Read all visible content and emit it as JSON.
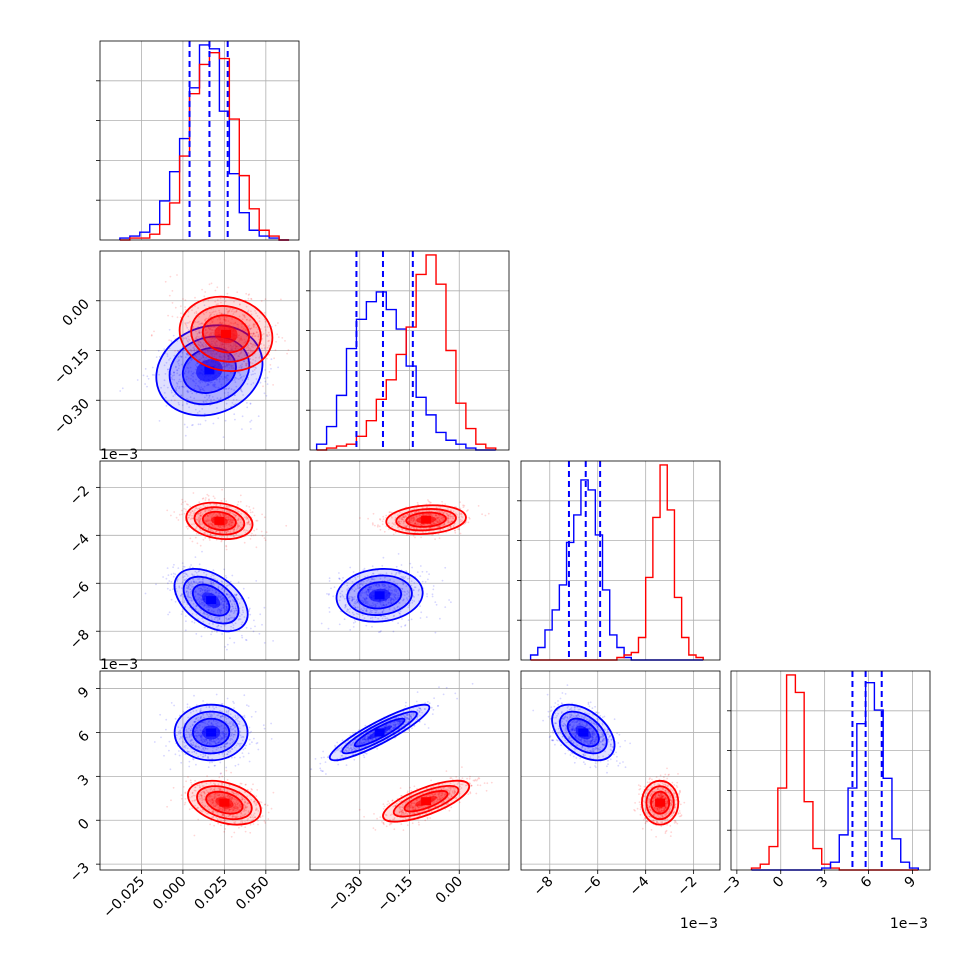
{
  "chart_data": {
    "type": "corner",
    "colors": {
      "primary": "#0000ff",
      "secondary": "#ff0000",
      "grid": "#b0b0b0"
    },
    "grid": true,
    "parameters": [
      {
        "index": 0,
        "range": [
          -0.05,
          0.07
        ],
        "ticks": [
          -0.025,
          0.0,
          0.025,
          0.05
        ],
        "tick_labels": [
          "−0.025",
          "0.000",
          "0.025",
          "0.050"
        ],
        "scale_label": ""
      },
      {
        "index": 1,
        "range": [
          -0.45,
          0.15
        ],
        "ticks": [
          -0.3,
          -0.15,
          0.0
        ],
        "tick_labels": [
          "−0.30",
          "−0.15",
          "0.00"
        ],
        "scale_label": ""
      },
      {
        "index": 2,
        "range": [
          -9.2,
          -0.9
        ],
        "ticks": [
          -8,
          -6,
          -4,
          -2
        ],
        "tick_labels": [
          "−8",
          "−6",
          "−4",
          "−2"
        ],
        "scale_label": "1e−3"
      },
      {
        "index": 3,
        "range": [
          -3.4,
          10.2
        ],
        "ticks": [
          -3,
          0,
          3,
          6,
          9
        ],
        "tick_labels": [
          "−3",
          "0",
          "3",
          "6",
          "9"
        ],
        "scale_label": "1e−3"
      }
    ],
    "diagonal": [
      {
        "param": 0,
        "quantiles": [
          0.004,
          0.016,
          0.027
        ],
        "bin_edges": [
          -0.038,
          -0.032,
          -0.026,
          -0.02,
          -0.014,
          -0.008,
          -0.002,
          0.004,
          0.01,
          0.016,
          0.022,
          0.028,
          0.034,
          0.04,
          0.046,
          0.052,
          0.058,
          0.064
        ],
        "series": [
          {
            "name": "",
            "color": "#0000ff",
            "values": [
              1,
              2,
              4,
              8,
              20,
              35,
              52,
              78,
              100,
              98,
              66,
              34,
              14,
              5,
              2,
              1,
              0
            ]
          },
          {
            "name": "",
            "color": "#ff0000",
            "values": [
              0,
              1,
              1,
              3,
              8,
              19,
              43,
              75,
              90,
              96,
              93,
              62,
              33,
              16,
              5,
              2,
              0
            ]
          }
        ]
      },
      {
        "param": 1,
        "quantiles": [
          -0.31,
          -0.23,
          -0.14
        ],
        "bin_edges": [
          -0.43,
          -0.4,
          -0.37,
          -0.34,
          -0.31,
          -0.28,
          -0.25,
          -0.22,
          -0.19,
          -0.16,
          -0.13,
          -0.1,
          -0.07,
          -0.04,
          -0.01,
          0.02,
          0.05,
          0.08,
          0.11
        ],
        "series": [
          {
            "name": "",
            "color": "#0000ff",
            "values": [
              3,
              12,
              28,
              52,
              67,
              76,
              81,
              72,
              62,
              43,
              27,
              18,
              9,
              5,
              3,
              1,
              0,
              0
            ]
          },
          {
            "name": "",
            "color": "#ff0000",
            "values": [
              0,
              1,
              2,
              3,
              7,
              15,
              26,
              36,
              49,
              63,
              90,
              100,
              85,
              51,
              24,
              11,
              3,
              1
            ]
          }
        ]
      },
      {
        "param": 2,
        "quantiles": [
          -7.2,
          -6.5,
          -5.9
        ],
        "bin_edges": [
          -8.8,
          -8.5,
          -8.2,
          -7.9,
          -7.6,
          -7.3,
          -7.0,
          -6.7,
          -6.4,
          -6.1,
          -5.8,
          -5.5,
          -5.2,
          -4.9,
          -4.6,
          -4.3,
          -4.0,
          -3.7,
          -3.4,
          -3.1,
          -2.8,
          -2.5,
          -2.2,
          -1.9,
          -1.6
        ],
        "series": [
          {
            "name": "",
            "color": "#0000ff",
            "values": [
              2,
              5,
              12,
              20,
              30,
              47,
              58,
              72,
              68,
              50,
              28,
              10,
              5,
              1,
              0,
              0,
              0,
              0,
              0,
              0,
              0,
              0,
              0,
              0
            ]
          },
          {
            "name": "",
            "color": "#ff0000",
            "values": [
              0,
              0,
              0,
              0,
              0,
              0,
              0,
              0,
              0,
              0,
              0,
              0,
              1,
              2,
              3,
              9,
              33,
              57,
              78,
              60,
              25,
              9,
              2,
              1
            ]
          }
        ]
      },
      {
        "param": 3,
        "quantiles": [
          4.9,
          5.8,
          6.9
        ],
        "bin_edges": [
          -2.0,
          -1.4,
          -0.8,
          -0.2,
          0.4,
          1.0,
          1.6,
          2.2,
          2.8,
          3.4,
          4.0,
          4.6,
          5.2,
          5.8,
          6.4,
          7.0,
          7.6,
          8.2,
          8.8,
          9.4
        ],
        "series": [
          {
            "name": "",
            "color": "#ff0000",
            "values": [
              1,
              3,
              12,
              42,
              100,
              91,
              35,
              11,
              3,
              1,
              0,
              0,
              0,
              0,
              0,
              0,
              0,
              0,
              0
            ]
          },
          {
            "name": "",
            "color": "#0000ff",
            "values": [
              0,
              0,
              0,
              0,
              0,
              0,
              0,
              0,
              1,
              4,
              18,
              42,
              75,
              96,
              82,
              47,
              16,
              4,
              1
            ]
          }
        ]
      }
    ],
    "off_diagonal": [
      {
        "x": 0,
        "y": 1,
        "distributions": [
          {
            "color": "#0000ff",
            "mean": [
              0.016,
              -0.21
            ],
            "sd": [
              0.016,
              0.068
            ],
            "corr": 0.15
          },
          {
            "color": "#ff0000",
            "mean": [
              0.026,
              -0.1
            ],
            "sd": [
              0.014,
              0.056
            ],
            "corr": -0.1
          }
        ]
      },
      {
        "x": 0,
        "y": 2,
        "distributions": [
          {
            "color": "#0000ff",
            "mean": [
              0.017,
              -6.7
            ],
            "sd": [
              0.011,
              0.65
            ],
            "corr": -0.45
          },
          {
            "color": "#ff0000",
            "mean": [
              0.022,
              -3.4
            ],
            "sd": [
              0.01,
              0.38
            ],
            "corr": -0.2
          }
        ]
      },
      {
        "x": 0,
        "y": 3,
        "distributions": [
          {
            "color": "#0000ff",
            "mean": [
              0.017,
              6.0
            ],
            "sd": [
              0.011,
              0.95
            ],
            "corr": 0.0
          },
          {
            "color": "#ff0000",
            "mean": [
              0.025,
              1.2
            ],
            "sd": [
              0.011,
              0.75
            ],
            "corr": -0.35
          }
        ]
      },
      {
        "x": 1,
        "y": 2,
        "distributions": [
          {
            "color": "#0000ff",
            "mean": [
              -0.24,
              -6.5
            ],
            "sd": [
              0.065,
              0.55
            ],
            "corr": 0.1
          },
          {
            "color": "#ff0000",
            "mean": [
              -0.1,
              -3.35
            ],
            "sd": [
              0.06,
              0.3
            ],
            "corr": 0.15
          }
        ]
      },
      {
        "x": 1,
        "y": 3,
        "distributions": [
          {
            "color": "#0000ff",
            "mean": [
              -0.24,
              6.0
            ],
            "sd": [
              0.075,
              0.95
            ],
            "corr": 0.9
          },
          {
            "color": "#ff0000",
            "mean": [
              -0.1,
              1.3
            ],
            "sd": [
              0.065,
              0.7
            ],
            "corr": 0.72
          }
        ]
      },
      {
        "x": 2,
        "y": 3,
        "distributions": [
          {
            "color": "#0000ff",
            "mean": [
              -6.6,
              6.0
            ],
            "sd": [
              0.65,
              0.95
            ],
            "corr": -0.45
          },
          {
            "color": "#ff0000",
            "mean": [
              -3.4,
              1.2
            ],
            "sd": [
              0.38,
              0.75
            ],
            "corr": 0.0
          }
        ]
      }
    ]
  }
}
